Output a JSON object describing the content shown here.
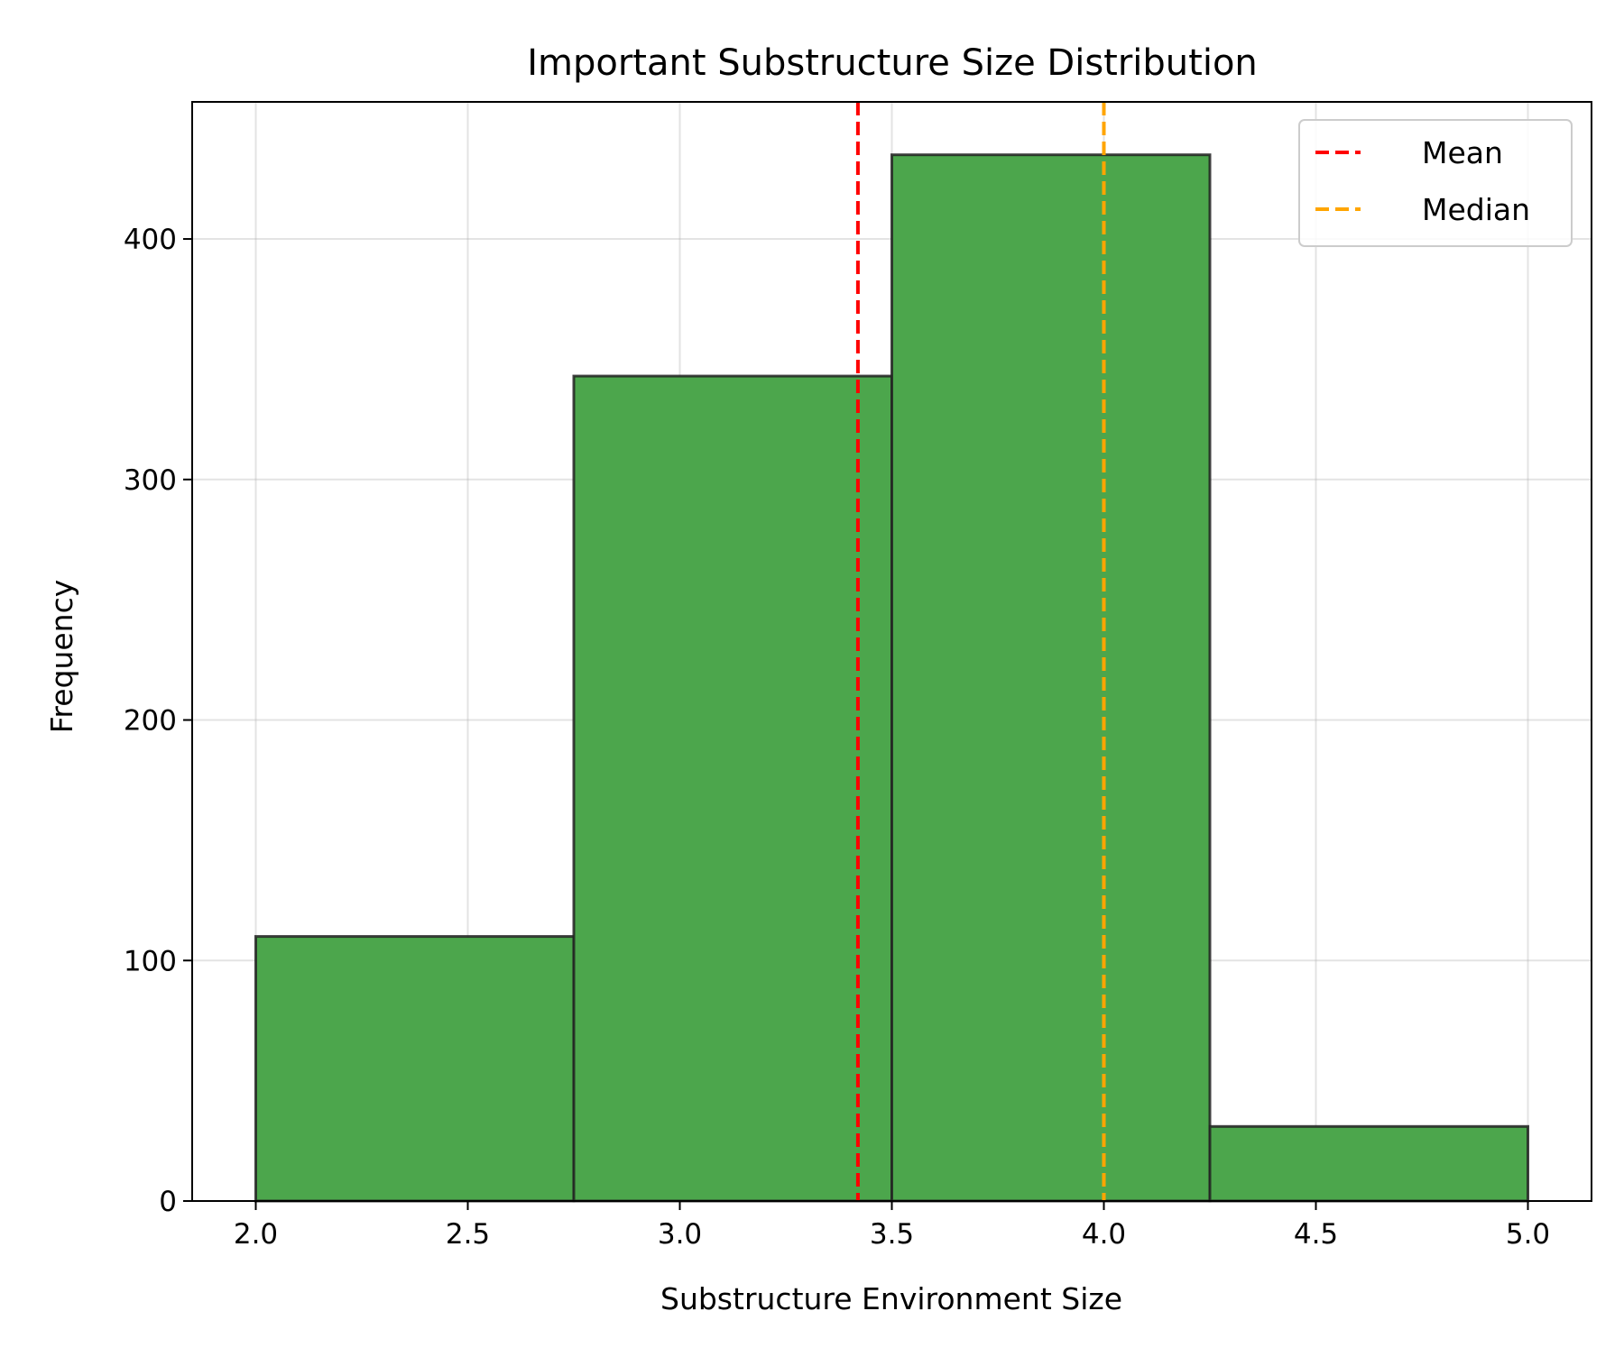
{
  "chart_data": {
    "type": "bar",
    "title": "Important Substructure Size Distribution",
    "xlabel": "Substructure Environment Size",
    "ylabel": "Frequency",
    "xlim": [
      1.85,
      5.15
    ],
    "ylim": [
      0,
      457
    ],
    "grid": true,
    "bar_color": "#4ca64c",
    "bar_edge_color": "#222222",
    "bins": [
      {
        "x0": 2.0,
        "x1": 2.75,
        "value": 110
      },
      {
        "x0": 2.75,
        "x1": 3.5,
        "value": 343
      },
      {
        "x0": 3.5,
        "x1": 4.25,
        "value": 435
      },
      {
        "x0": 4.25,
        "x1": 5.0,
        "value": 31
      }
    ],
    "x_ticks": [
      {
        "value": 2.0,
        "label": "2.0"
      },
      {
        "value": 2.5,
        "label": "2.5"
      },
      {
        "value": 3.0,
        "label": "3.0"
      },
      {
        "value": 3.5,
        "label": "3.5"
      },
      {
        "value": 4.0,
        "label": "4.0"
      },
      {
        "value": 4.5,
        "label": "4.5"
      },
      {
        "value": 5.0,
        "label": "5.0"
      }
    ],
    "y_ticks": [
      {
        "value": 0,
        "label": "0"
      },
      {
        "value": 100,
        "label": "100"
      },
      {
        "value": 200,
        "label": "200"
      },
      {
        "value": 300,
        "label": "300"
      },
      {
        "value": 400,
        "label": "400"
      }
    ],
    "reference_lines": [
      {
        "name": "Mean",
        "value": 3.42,
        "color": "#ff0000"
      },
      {
        "name": "Median",
        "value": 4.0,
        "color": "#ffa500"
      }
    ],
    "legend": {
      "position": "top-right",
      "entries": [
        {
          "label": "Mean",
          "color": "#ff0000"
        },
        {
          "label": "Median",
          "color": "#ffa500"
        }
      ]
    }
  }
}
